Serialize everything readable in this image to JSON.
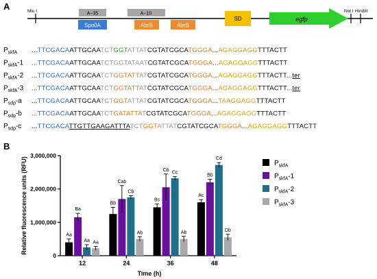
{
  "panel_a": {
    "label": "A",
    "map": {
      "mlu_site": "Mlu I",
      "not_site": "Not I",
      "hind_site": "HindIII",
      "box_a35": "A−35",
      "box_a10": "A−10",
      "box_spo0a": "Spo0A",
      "box_abrb1": "AbrB",
      "box_abrb2": "AbrB",
      "box_sd": "SD",
      "gene": "egfp",
      "colors": {
        "gray_box": "#a6a6a6",
        "spo0a": "#3a7bd5",
        "abrb": "#ef8a2e",
        "sd": "#f2c200",
        "egfp": "#2ecf2e"
      }
    },
    "colors": {
      "blue": "#2f6ec9",
      "black": "#111111",
      "gray": "#9a9a9a",
      "green": "#2e9a2e",
      "orange": "#e07b1f",
      "yellow": "#d9a400"
    },
    "sequences": [
      {
        "name": {
          "main": "P",
          "sub": "skfA",
          "suffix": ""
        },
        "segments": [
          {
            "t": "...",
            "c": "black"
          },
          {
            "t": "TTCGACA",
            "c": "blue"
          },
          {
            "t": "ATTGCAA",
            "c": "black"
          },
          {
            "t": "TCT",
            "c": "gray"
          },
          {
            "t": "GGT",
            "c": "green"
          },
          {
            "t": "ATTAT",
            "c": "gray"
          },
          {
            "t": "CGTATCGCA",
            "c": "black"
          },
          {
            "t": "TGGGA",
            "c": "orange"
          },
          {
            "t": "...",
            "c": "black"
          },
          {
            "t": "AGAGGAGG",
            "c": "yellow"
          },
          {
            "t": "TTTACTT",
            "c": "black"
          }
        ]
      },
      {
        "name": {
          "main": "P",
          "sub": "skfA",
          "suffix": "-1"
        },
        "segments": [
          {
            "t": "...",
            "c": "black"
          },
          {
            "t": "TTCGACA",
            "c": "blue"
          },
          {
            "t": "ATTGCAA",
            "c": "black"
          },
          {
            "t": "TCTGGTATAAT",
            "c": "gray"
          },
          {
            "t": "CGTATCGCA",
            "c": "black"
          },
          {
            "t": "TGGGA",
            "c": "orange"
          },
          {
            "t": "...",
            "c": "black"
          },
          {
            "t": "AGAGGAGG",
            "c": "yellow"
          },
          {
            "t": "TTTACTT",
            "c": "black"
          }
        ]
      },
      {
        "name": {
          "main": "P",
          "sub": "skfA",
          "suffix": "-2"
        },
        "segments": [
          {
            "t": "...",
            "c": "black"
          },
          {
            "t": "TTCGACA",
            "c": "blue"
          },
          {
            "t": "ATTGCAA",
            "c": "black"
          },
          {
            "t": "TCT",
            "c": "gray"
          },
          {
            "t": "GGTATT",
            "c": "orange"
          },
          {
            "t": "AT",
            "c": "gray"
          },
          {
            "t": "CGTATCGCA",
            "c": "black"
          },
          {
            "t": "TGGGA",
            "c": "orange"
          },
          {
            "t": "...",
            "c": "black"
          },
          {
            "t": "AGAGGAGG",
            "c": "yellow"
          },
          {
            "t": "TTTACTT",
            "c": "black"
          },
          {
            "t": "...",
            "c": "black"
          },
          {
            "t": "ter",
            "c": "black",
            "u": true
          }
        ]
      },
      {
        "name": {
          "main": "P",
          "sub": "skfA",
          "suffix": "-3"
        },
        "segments": [
          {
            "t": "...",
            "c": "black"
          },
          {
            "t": "TTCGACA",
            "c": "blue"
          },
          {
            "t": "ATTGCAA",
            "c": "black"
          },
          {
            "t": "TCT",
            "c": "gray"
          },
          {
            "t": "GGTATT",
            "c": "orange"
          },
          {
            "t": "AT",
            "c": "gray"
          },
          {
            "t": "CGTATCGCA",
            "c": "black"
          },
          {
            "t": "TGGGA",
            "c": "orange"
          },
          {
            "t": "...",
            "c": "black"
          },
          {
            "t": "AGAGGAGG",
            "c": "yellow"
          },
          {
            "t": "TTTACTT",
            "c": "black"
          },
          {
            "t": "...",
            "c": "black"
          },
          {
            "t": "ter",
            "c": "black",
            "u": true
          }
        ]
      },
      {
        "name": {
          "main": "P",
          "sub": "sdp",
          "suffix": "-a"
        },
        "segments": [
          {
            "t": "...",
            "c": "black"
          },
          {
            "t": "TTCGACA",
            "c": "blue"
          },
          {
            "t": "ATTGCAA",
            "c": "black"
          },
          {
            "t": "TCT",
            "c": "gray"
          },
          {
            "t": "GGT",
            "c": "orange"
          },
          {
            "t": "ATTAT",
            "c": "gray"
          },
          {
            "t": "CGTATCGCA",
            "c": "black"
          },
          {
            "t": "TGGGA",
            "c": "orange"
          },
          {
            "t": "...",
            "c": "black"
          },
          {
            "t": "TAAGGAGG",
            "c": "yellow"
          },
          {
            "t": "TTTACTT",
            "c": "black"
          }
        ]
      },
      {
        "name": {
          "main": "P",
          "sub": "sdp",
          "suffix": "-b"
        },
        "segments": [
          {
            "t": "...",
            "c": "black"
          },
          {
            "t": "TTCGACA",
            "c": "blue"
          },
          {
            "t": "ATTGCAA",
            "c": "black"
          },
          {
            "t": "TCT",
            "c": "gray"
          },
          {
            "t": "GATATT",
            "c": "orange"
          },
          {
            "t": "AT",
            "c": "gray"
          },
          {
            "t": "CGTATCGCA",
            "c": "black"
          },
          {
            "t": "TGGGA",
            "c": "orange"
          },
          {
            "t": "...",
            "c": "black"
          },
          {
            "t": "AGAGGAGG",
            "c": "yellow"
          },
          {
            "t": "TTTACTT",
            "c": "black"
          }
        ]
      },
      {
        "name": {
          "main": "P",
          "sub": "sdp",
          "suffix": "-c"
        },
        "segments": [
          {
            "t": "...",
            "c": "black"
          },
          {
            "t": "TTCGACA",
            "c": "blue"
          },
          {
            "t": "TTGTTGAAGATTTA",
            "c": "black",
            "u": true
          },
          {
            "t": "TCT",
            "c": "gray"
          },
          {
            "t": "GGT",
            "c": "orange"
          },
          {
            "t": "ATTAT",
            "c": "gray"
          },
          {
            "t": "CGTATCGCA",
            "c": "black"
          },
          {
            "t": "TGGGA",
            "c": "orange"
          },
          {
            "t": "...",
            "c": "black"
          },
          {
            "t": "AGAGGAGG",
            "c": "yellow"
          },
          {
            "t": "TTTACTT",
            "c": "black"
          }
        ]
      }
    ]
  },
  "panel_b": {
    "label": "B",
    "chart_data": {
      "type": "bar",
      "xlabel": "Time (h)",
      "ylabel": "Relative fluorescence units (RFU)",
      "ylim": [
        0,
        3000000
      ],
      "yticks": [
        0,
        1000000,
        2000000,
        3000000
      ],
      "ytick_labels": [
        "0",
        "1,000,000",
        "2,000,000",
        "3,000,000"
      ],
      "categories": [
        "12",
        "24",
        "36",
        "48"
      ],
      "legend_position": "right",
      "series": [
        {
          "name_main": "P",
          "name_sub": "skfA",
          "name_suffix": "",
          "color": "#000000",
          "values": [
            400000,
            1250000,
            1450000,
            1600000
          ],
          "errors": [
            100000,
            200000,
            100000,
            80000
          ],
          "labels": [
            "Aa",
            "Bb",
            "Bc",
            "Ac"
          ]
        },
        {
          "name_main": "P",
          "name_sub": "skfA",
          "name_suffix": "-1",
          "color": "#6a0f9e",
          "values": [
            1150000,
            1700000,
            2050000,
            2200000
          ],
          "errors": [
            120000,
            400000,
            400000,
            90000
          ],
          "labels": [
            "Ba",
            "Cab",
            "Cb",
            "Bb"
          ]
        },
        {
          "name_main": "P",
          "name_sub": "skfA",
          "name_suffix": "-2",
          "color": "#1f6f8b",
          "values": [
            250000,
            1750000,
            2320000,
            2720000
          ],
          "errors": [
            80000,
            50000,
            50000,
            70000
          ],
          "labels": [
            "Aa",
            "Cb",
            "Cc",
            "Cd"
          ]
        },
        {
          "name_main": "P",
          "name_sub": "skfA",
          "name_suffix": "-3",
          "color": "#a9a9a9",
          "values": [
            220000,
            500000,
            500000,
            550000
          ],
          "errors": [
            60000,
            70000,
            80000,
            90000
          ],
          "labels": [
            "Aa",
            "Ab",
            "Ab",
            "Db"
          ]
        }
      ]
    }
  }
}
